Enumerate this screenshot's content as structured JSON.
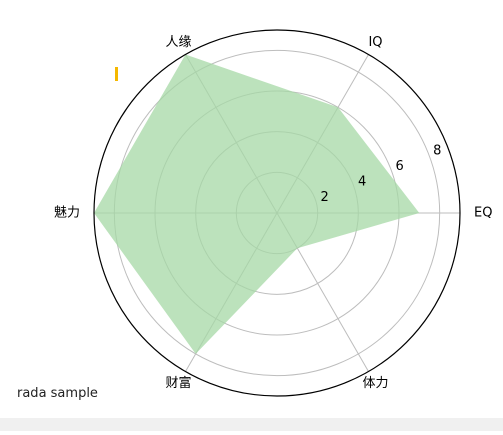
{
  "caption": "rada sample",
  "chart_data": {
    "type": "radar",
    "title": "",
    "axes": [
      "EQ",
      "IQ",
      "人缘",
      "魅力",
      "财富",
      "体力"
    ],
    "values": [
      7,
      6,
      9,
      9,
      8,
      2
    ],
    "radial_ticks": [
      2,
      4,
      6,
      8
    ],
    "rmax": 9,
    "grid": true,
    "fill_color": "#a6d8a6",
    "fill_opacity": 0.75,
    "grid_color": "#bdbdbd",
    "outer_ring_color": "#000000"
  },
  "colors": {
    "cursor": "#f5b800"
  }
}
